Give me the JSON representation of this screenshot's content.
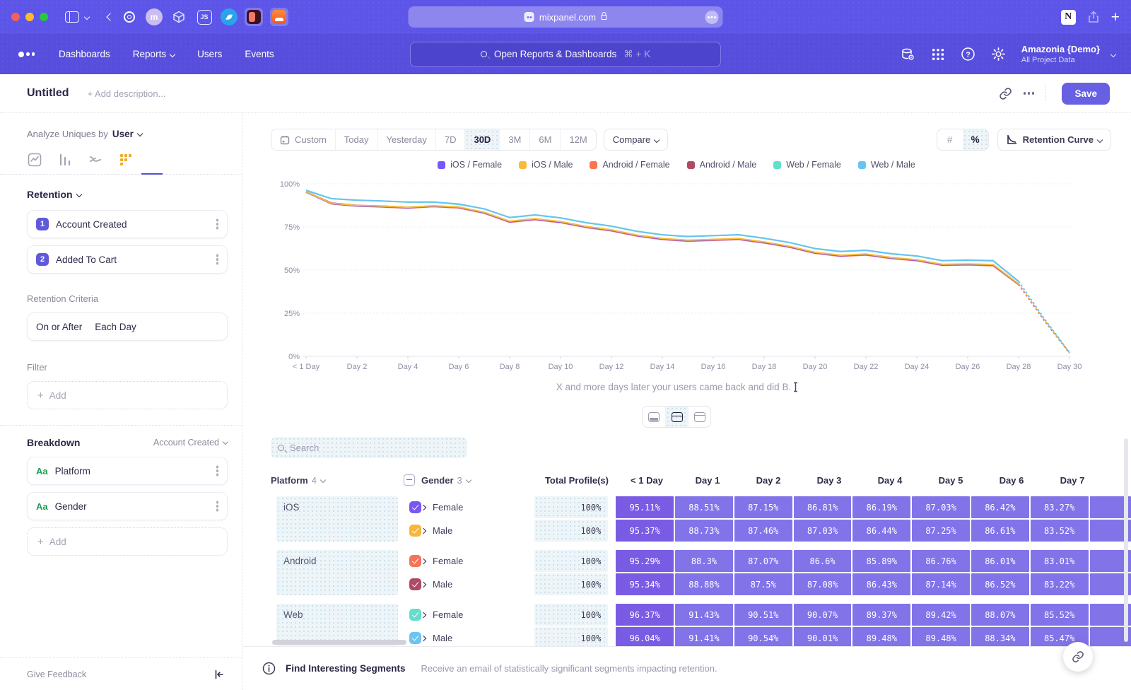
{
  "browser": {
    "url": "mixpanel.com"
  },
  "nav": {
    "items": [
      "Dashboards",
      "Reports",
      "Users",
      "Events"
    ],
    "search_placeholder": "Open Reports & Dashboards",
    "search_shortcut": "⌘ + K",
    "account_name": "Amazonia {Demo}",
    "account_scope": "All Project Data"
  },
  "header": {
    "title": "Untitled",
    "description_placeholder": "+ Add description...",
    "save": "Save"
  },
  "sidebar": {
    "analyze_label": "Analyze Uniques by",
    "analyze_value": "User",
    "retention_label": "Retention",
    "steps": [
      {
        "num": "1",
        "label": "Account Created"
      },
      {
        "num": "2",
        "label": "Added To Cart"
      }
    ],
    "criteria_label": "Retention Criteria",
    "criteria_condition": "On or After",
    "criteria_interval": "Each Day",
    "filter_label": "Filter",
    "add_label": "Add",
    "breakdown_label": "Breakdown",
    "breakdown_scope": "Account Created",
    "breakdowns": [
      {
        "type": "Aa",
        "label": "Platform"
      },
      {
        "type": "Aa",
        "label": "Gender"
      }
    ],
    "feedback": "Give Feedback"
  },
  "toolbar": {
    "ranges": [
      "Custom",
      "Today",
      "Yesterday",
      "7D",
      "30D",
      "3M",
      "6M",
      "12M"
    ],
    "selected_range": "30D",
    "compare": "Compare",
    "units": [
      "#",
      "%"
    ],
    "selected_unit": "%",
    "chart_type": "Retention Curve"
  },
  "chart_data": {
    "type": "line",
    "title": "Retention Curve",
    "ylim": [
      0,
      100
    ],
    "ytick_labels": [
      "0%",
      "25%",
      "50%",
      "75%",
      "100%"
    ],
    "grid": true,
    "legend_position": "top",
    "dashed_from_index": 28,
    "caption": "X and more days later your users came back and did B.",
    "categories": [
      "< 1 Day",
      "Day 1",
      "Day 2",
      "Day 3",
      "Day 4",
      "Day 5",
      "Day 6",
      "Day 7",
      "Day 8",
      "Day 9",
      "Day 10",
      "Day 11",
      "Day 12",
      "Day 13",
      "Day 14",
      "Day 15",
      "Day 16",
      "Day 17",
      "Day 18",
      "Day 19",
      "Day 20",
      "Day 21",
      "Day 22",
      "Day 23",
      "Day 24",
      "Day 25",
      "Day 26",
      "Day 27",
      "Day 28",
      "Day 29",
      "Day 30"
    ],
    "series": [
      {
        "name": "Android / Female",
        "color": "#fb7350",
        "values": [
          95.29,
          88.3,
          87.07,
          86.6,
          85.89,
          86.76,
          86.01,
          83.01,
          77.7,
          79.2,
          77.5,
          74.7,
          72.7,
          69.7,
          67.7,
          66.7,
          67.2,
          67.7,
          65.7,
          63.2,
          59.7,
          58.0,
          58.7,
          56.7,
          55.4,
          52.7,
          53.0,
          52.5,
          41.5,
          20.9,
          1.9
        ]
      },
      {
        "name": "Android / Male",
        "color": "#b04a63",
        "values": [
          95.34,
          88.88,
          87.5,
          87.08,
          86.43,
          87.14,
          86.52,
          83.22,
          78.2,
          79.7,
          78.0,
          75.2,
          73.2,
          70.2,
          68.2,
          67.2,
          67.7,
          68.2,
          66.2,
          63.7,
          60.2,
          58.5,
          59.2,
          57.2,
          55.9,
          53.2,
          53.5,
          53.0,
          41.9,
          21.2,
          1.9
        ]
      },
      {
        "name": "iOS / Female",
        "color": "#7856ff",
        "values": [
          95.11,
          88.51,
          87.15,
          86.81,
          86.19,
          87.03,
          86.42,
          83.27,
          78.0,
          79.5,
          77.8,
          75.0,
          73.0,
          70.0,
          68.0,
          67.0,
          67.5,
          68.0,
          66.0,
          63.5,
          60.0,
          58.3,
          59.0,
          57.0,
          55.7,
          53.0,
          53.3,
          52.9,
          41.8,
          21.1,
          2.0
        ]
      },
      {
        "name": "iOS / Male",
        "color": "#f8bc3b",
        "values": [
          95.37,
          88.73,
          87.46,
          87.03,
          86.44,
          87.25,
          86.61,
          83.52,
          78.3,
          79.8,
          78.1,
          75.3,
          73.3,
          70.3,
          68.3,
          67.3,
          67.8,
          68.3,
          66.3,
          63.8,
          60.3,
          58.6,
          59.3,
          57.3,
          56.0,
          53.3,
          53.6,
          53.2,
          42.0,
          21.3,
          2.0
        ]
      },
      {
        "name": "Web / Female",
        "color": "#5fe0cd",
        "values": [
          96.37,
          91.43,
          90.51,
          90.07,
          89.37,
          89.42,
          88.07,
          85.52,
          80.4,
          81.9,
          80.2,
          77.4,
          75.4,
          72.4,
          70.4,
          69.4,
          69.9,
          70.4,
          68.4,
          65.9,
          62.4,
          60.7,
          61.4,
          59.4,
          58.1,
          55.4,
          55.7,
          55.3,
          43.3,
          21.9,
          2.1
        ]
      },
      {
        "name": "Web / Male",
        "color": "#69c3f2",
        "values": [
          96.04,
          91.41,
          90.54,
          90.01,
          89.48,
          89.48,
          88.34,
          85.47,
          80.5,
          82.0,
          80.3,
          77.5,
          75.5,
          72.5,
          70.5,
          69.5,
          70.0,
          70.5,
          68.5,
          66.0,
          62.5,
          60.8,
          61.5,
          59.5,
          58.2,
          55.5,
          55.8,
          55.5,
          43.5,
          22.0,
          2.2
        ]
      }
    ],
    "legend_order": [
      "iOS / Female",
      "iOS / Male",
      "Android / Female",
      "Android / Male",
      "Web / Female",
      "Web / Male"
    ]
  },
  "table": {
    "search_placeholder": "Search",
    "platform_header": {
      "label": "Platform",
      "count": "4"
    },
    "gender_header": {
      "label": "Gender",
      "count": "3"
    },
    "total_header": "Total Profile(s)",
    "day_headers": [
      "< 1 Day",
      "Day 1",
      "Day 2",
      "Day 3",
      "Day 4",
      "Day 5",
      "Day 6",
      "Day 7"
    ],
    "groups": [
      {
        "platform": "iOS",
        "rows": [
          {
            "gender": "Female",
            "color": "#7857ee",
            "total": "100%",
            "values": [
              "95.11%",
              "88.51%",
              "87.15%",
              "86.81%",
              "86.19%",
              "87.03%",
              "86.42%",
              "83.27%"
            ]
          },
          {
            "gender": "Male",
            "color": "#f6b73c",
            "total": "100%",
            "values": [
              "95.37%",
              "88.73%",
              "87.46%",
              "87.03%",
              "86.44%",
              "87.25%",
              "86.61%",
              "83.52%"
            ]
          }
        ]
      },
      {
        "platform": "Android",
        "rows": [
          {
            "gender": "Female",
            "color": "#f4735b",
            "total": "100%",
            "values": [
              "95.29%",
              "88.3%",
              "87.07%",
              "86.6%",
              "85.89%",
              "86.76%",
              "86.01%",
              "83.01%"
            ]
          },
          {
            "gender": "Male",
            "color": "#ad4a66",
            "total": "100%",
            "values": [
              "95.34%",
              "88.88%",
              "87.5%",
              "87.08%",
              "86.43%",
              "87.14%",
              "86.52%",
              "83.22%"
            ]
          }
        ]
      },
      {
        "platform": "Web",
        "rows": [
          {
            "gender": "Female",
            "color": "#66dcc9",
            "total": "100%",
            "values": [
              "96.37%",
              "91.43%",
              "90.51%",
              "90.07%",
              "89.37%",
              "89.42%",
              "88.07%",
              "85.52%"
            ]
          },
          {
            "gender": "Male",
            "color": "#6cc4f2",
            "total": "100%",
            "values": [
              "96.04%",
              "91.41%",
              "90.54%",
              "90.01%",
              "89.48%",
              "89.48%",
              "88.34%",
              "85.47%"
            ]
          }
        ]
      }
    ]
  },
  "footer": {
    "segments_title": "Find Interesting Segments",
    "segments_desc": "Receive an email of statistically significant segments impacting retention."
  }
}
